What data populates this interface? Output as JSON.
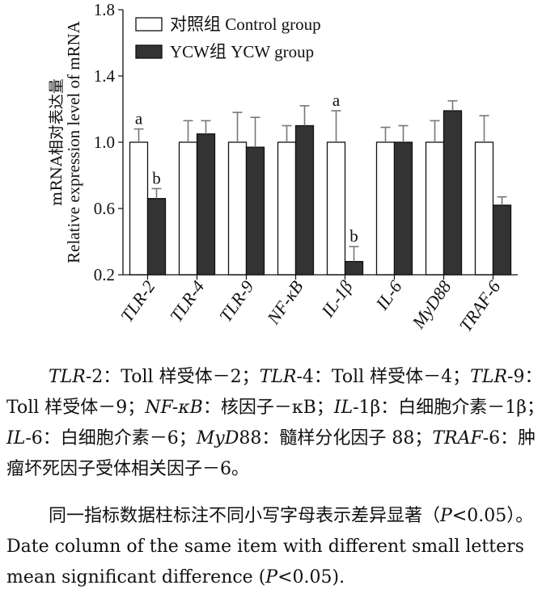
{
  "chart_data": {
    "type": "bar",
    "ylabel_zh": "mRNA相对表达量",
    "ylabel_en": "Relative expression level of mRNA",
    "ylim": [
      0.2,
      1.8
    ],
    "yticks": [
      "0.2",
      "0.6",
      "1.0",
      "1.4",
      "1.8"
    ],
    "categories": [
      "TLR-2",
      "TLR-4",
      "TLR-9",
      "NF-κB",
      "IL-1β",
      "IL-6",
      "MyD88",
      "TRAF-6"
    ],
    "series": [
      {
        "name": "对照组  Control group",
        "color": "#ffffff",
        "values": [
          1.0,
          1.0,
          1.0,
          1.0,
          1.0,
          1.0,
          1.0,
          1.0
        ],
        "errors": [
          0.08,
          0.13,
          0.18,
          0.1,
          0.19,
          0.09,
          0.13,
          0.16
        ],
        "labels": [
          "a",
          "",
          "",
          "",
          "a",
          "",
          "",
          ""
        ]
      },
      {
        "name": "YCW组  YCW group",
        "color": "#333333",
        "values": [
          0.66,
          1.05,
          0.97,
          1.1,
          0.28,
          1.0,
          1.19,
          0.62
        ],
        "errors": [
          0.06,
          0.08,
          0.18,
          0.12,
          0.09,
          0.1,
          0.06,
          0.05
        ],
        "labels": [
          "b",
          "",
          "",
          "",
          "b",
          "",
          "",
          ""
        ]
      }
    ],
    "grid": false,
    "legend": "top-left",
    "error_bars": true
  },
  "notes": {
    "abbr": [
      {
        "term": "TLR",
        "suffix": "-2",
        "desc": "：Toll 样受体－2；"
      },
      {
        "term": "TLR",
        "suffix": "-4",
        "desc": "：Toll 样受体－4；"
      },
      {
        "term": "TLR",
        "suffix": "-9",
        "desc": "：Toll 样受体－9；"
      },
      {
        "term": "NF-κB",
        "suffix": "",
        "desc": "：核因子－κB；"
      },
      {
        "term": "IL",
        "suffix": "-1β",
        "desc": "：白细胞介素－1β；"
      },
      {
        "term": "IL",
        "suffix": "-6",
        "desc": "：白细胞介素－6；"
      },
      {
        "term": "MyD",
        "suffix": "88",
        "desc": "：髓样分化因子 88；"
      },
      {
        "term": "TRAF",
        "suffix": "-6",
        "desc": "：肿瘤坏死因子受体相关因子－6。"
      }
    ],
    "sig_zh_pre": "同一指标数据柱标注不同小写字母表示差异显著（",
    "sig_p": "P",
    "sig_zh_post": "<0.05）。",
    "sig_en_pre": "Date column of the same item with different small letters mean significant difference (",
    "sig_en_post": "<0.05)."
  }
}
